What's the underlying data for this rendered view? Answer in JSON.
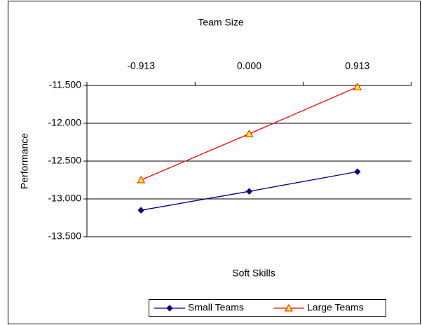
{
  "chart_data": {
    "type": "line",
    "title": "Team Size",
    "x_label": "Soft Skills",
    "y_label": "Performance",
    "categories": [
      "-0.913",
      "0.000",
      "0.913"
    ],
    "series": [
      {
        "name": "Small Teams",
        "color": "#000080",
        "marker": "diamond",
        "values": [
          -13.15,
          -12.9,
          -12.64
        ]
      },
      {
        "name": "Large Teams",
        "color": "#ff0000",
        "marker": "triangle",
        "marker_fill": "#ffff00",
        "values": [
          -12.75,
          -12.14,
          -11.52
        ]
      }
    ],
    "ylim": [
      -13.5,
      -11.5
    ],
    "yticks": [
      {
        "value": -13.5,
        "label": "-13.500"
      },
      {
        "value": -13,
        "label": "-13.000"
      },
      {
        "value": -12.5,
        "label": "-12.500"
      },
      {
        "value": -12,
        "label": "-12.000"
      },
      {
        "value": -11.5,
        "label": "-11.500"
      }
    ],
    "grid": true,
    "legend_position": "bottom"
  }
}
